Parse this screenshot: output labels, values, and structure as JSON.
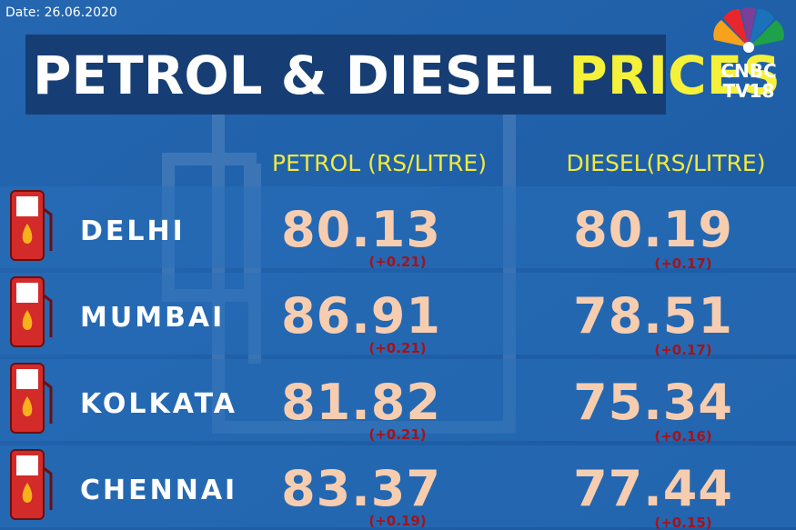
{
  "date": "Date: 26.06.2020",
  "title": {
    "main": "PETROL & DIESEL",
    "highlight": "PRICES"
  },
  "logo": {
    "line1": "CNBC",
    "line2": "TV18"
  },
  "table": {
    "headers": [
      "PETROL (RS/LITRE)",
      "DIESEL(RS/LITRE)"
    ],
    "rows": [
      {
        "city": "DELHI",
        "petrol": "80.13",
        "petrol_change": "(+0.21)",
        "diesel": "80.19",
        "diesel_change": "(+0.17)"
      },
      {
        "city": "MUMBAI",
        "petrol": "86.91",
        "petrol_change": "(+0.21)",
        "diesel": "78.51",
        "diesel_change": "(+0.17)"
      },
      {
        "city": "KOLKATA",
        "petrol": "81.82",
        "petrol_change": "(+0.21)",
        "diesel": "75.34",
        "diesel_change": "(+0.16)"
      },
      {
        "city": "CHENNAI",
        "petrol": "83.37",
        "petrol_change": "(+0.19)",
        "diesel": "77.44",
        "diesel_change": "(+0.15)"
      }
    ]
  }
}
